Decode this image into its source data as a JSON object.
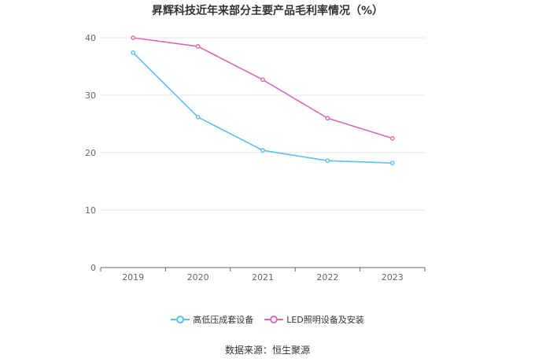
{
  "title": "昇辉科技近年来部分主要产品毛利率情况（%）",
  "source": "数据来源：恒生聚源",
  "colors": {
    "series1": "#5bc0eb",
    "series2": "#d66bb5",
    "grid": "#e6e6e6",
    "axis": "#666666",
    "tick_text": "#666666"
  },
  "chart_data": {
    "type": "line",
    "x": [
      "2019",
      "2020",
      "2021",
      "2022",
      "2023"
    ],
    "ylim": [
      0,
      40
    ],
    "yticks": [
      "0",
      "10",
      "20",
      "30",
      "40"
    ],
    "grid": true,
    "legend_position": "bottom",
    "title": "昇辉科技近年来部分主要产品毛利率情况（%）",
    "xlabel": "",
    "ylabel": "",
    "series": [
      {
        "name": "高低压成套设备",
        "values": [
          37.4,
          26.2,
          20.4,
          18.6,
          18.2
        ]
      },
      {
        "name": "LED照明设备及安装",
        "values": [
          40.0,
          38.5,
          32.7,
          26.0,
          22.5
        ]
      }
    ]
  }
}
